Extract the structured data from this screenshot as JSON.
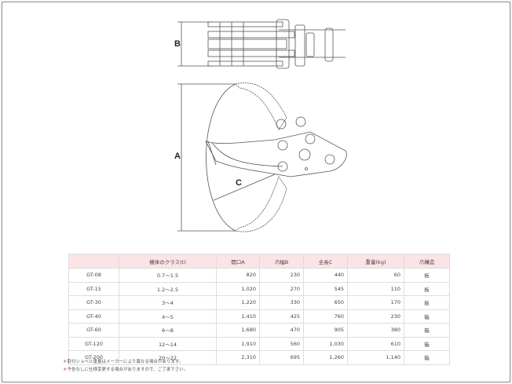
{
  "drawing": {
    "labels": {
      "a": "A",
      "b": "B",
      "c": "C"
    }
  },
  "table": {
    "headers": [
      "",
      "機体のクラス(t)",
      "開口A",
      "爪幅B",
      "全長C",
      "重量(kg)",
      "爪構造"
    ],
    "rows": [
      [
        "GT-08",
        "0.7～1.5",
        "820",
        "230",
        "440",
        "60",
        "板"
      ],
      [
        "GT-15",
        "1.2～2.5",
        "1,020",
        "270",
        "545",
        "110",
        "板"
      ],
      [
        "GT-30",
        "3～4",
        "1,220",
        "330",
        "650",
        "170",
        "板"
      ],
      [
        "GT-40",
        "4～5",
        "1,410",
        "425",
        "760",
        "230",
        "箱"
      ],
      [
        "GT-60",
        "6～8",
        "1,680",
        "470",
        "905",
        "380",
        "箱"
      ],
      [
        "GT-120",
        "12～14",
        "1,910",
        "560",
        "1,030",
        "610",
        "箱"
      ],
      [
        "GT-200",
        "20～22",
        "2,310",
        "695",
        "1,260",
        "1,140",
        "箱"
      ]
    ]
  },
  "notes": {
    "marker": "＊",
    "items": [
      "取付ショベル重量はメーカーにより異なる場合があります。",
      "予告なしに仕様変更する場合がありますので、ご了承下さい。"
    ]
  }
}
